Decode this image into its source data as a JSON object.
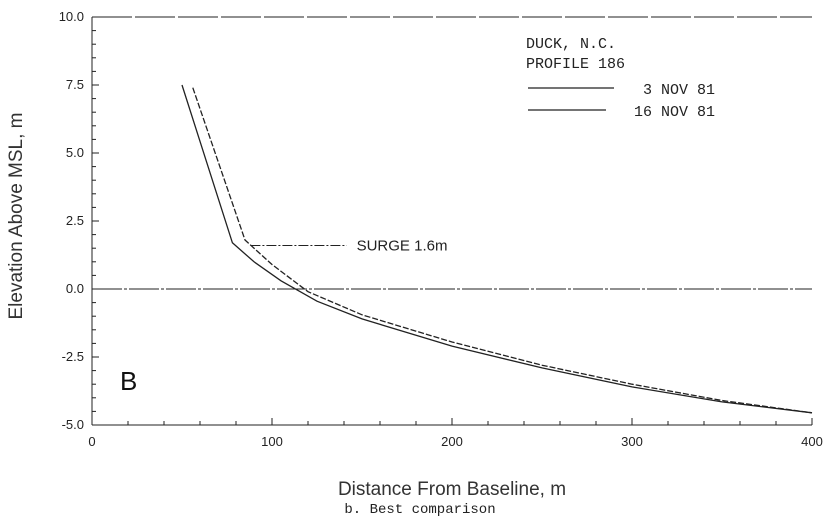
{
  "chart_data": {
    "type": "line",
    "xlabel": "Distance From Baseline, m",
    "ylabel": "Elevation Above MSL, m",
    "xlim": [
      0,
      400
    ],
    "ylim": [
      -5.0,
      10.0
    ],
    "xticks": [
      0,
      100,
      200,
      300,
      400
    ],
    "xtick_labels": [
      "0",
      "100",
      "200",
      "300",
      "400"
    ],
    "yticks": [
      -5.0,
      -2.5,
      0.0,
      2.5,
      5.0,
      7.5,
      10.0
    ],
    "ytick_labels": [
      "-5.0",
      "-2.5",
      "0.0",
      "2.5",
      "5.0",
      "7.5",
      "10.0"
    ],
    "grid": false,
    "legend_title": [
      "DUCK, N.C.",
      "PROFILE 186"
    ],
    "legend_position": "top-right",
    "series": [
      {
        "name": "3 NOV 81",
        "x": [
          56,
          85,
          100,
          120,
          150,
          200,
          250,
          300,
          350,
          400
        ],
        "y": [
          7.4,
          1.8,
          0.9,
          -0.1,
          -0.95,
          -1.95,
          -2.8,
          -3.5,
          -4.1,
          -4.55
        ]
      },
      {
        "name": "16 NOV 81",
        "x": [
          50,
          78,
          90,
          105,
          125,
          150,
          200,
          250,
          300,
          350,
          400
        ],
        "y": [
          7.5,
          1.7,
          1.0,
          0.3,
          -0.45,
          -1.1,
          -2.1,
          -2.9,
          -3.6,
          -4.15,
          -4.55
        ]
      }
    ],
    "reference_lines": [
      {
        "y": 0.0
      }
    ],
    "annotations": [
      {
        "text": "SURGE 1.6m",
        "x": 147,
        "y": 1.6,
        "arrow_to_x": 88
      }
    ],
    "panel_label": "B",
    "caption": "b.  Best comparison"
  }
}
